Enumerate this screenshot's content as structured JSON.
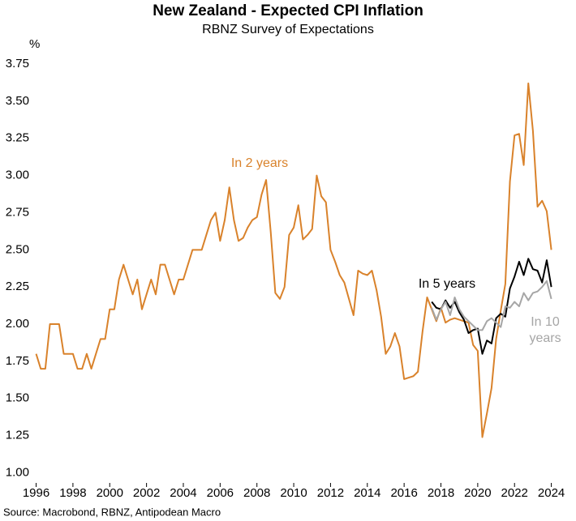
{
  "chart_data": {
    "type": "line",
    "title": "New Zealand - Expected CPI Inflation",
    "subtitle": "RBNZ Survey of Expectations",
    "y_unit": "%",
    "source": "Source: Macrobond, RBNZ, Antipodean Macro",
    "xlim": [
      1995.8,
      2024.9
    ],
    "ylim": [
      0.91,
      3.81
    ],
    "xticks": [
      1996,
      1998,
      2000,
      2002,
      2004,
      2006,
      2008,
      2010,
      2012,
      2014,
      2016,
      2018,
      2020,
      2022,
      2024
    ],
    "yticks": [
      {
        "value": 1,
        "label": "1.00"
      },
      1.25,
      {
        "value": 1.5,
        "label": "1.50"
      },
      1.75,
      {
        "value": 2,
        "label": "2.00"
      },
      2.25,
      {
        "value": 2.5,
        "label": "2.50"
      },
      2.75,
      {
        "value": 3,
        "label": "3.00"
      },
      3.25,
      {
        "value": 3.5,
        "label": "3.50"
      },
      3.75
    ],
    "grid": false,
    "annotations": [
      {
        "lines": [
          "In 2 years"
        ],
        "color": "#d9822b"
      },
      {
        "lines": [
          "In 5 years"
        ],
        "color": "#000000"
      },
      {
        "lines": [
          "In 10",
          "years"
        ],
        "color": "#a6a6a6"
      }
    ],
    "x": [
      1996,
      1996.25,
      1996.5,
      1996.75,
      1997,
      1997.25,
      1997.5,
      1997.75,
      1998,
      1998.25,
      1998.5,
      1998.75,
      1999,
      1999.25,
      1999.5,
      1999.75,
      2000,
      2000.25,
      2000.5,
      2000.75,
      2001,
      2001.25,
      2001.5,
      2001.75,
      2002,
      2002.25,
      2002.5,
      2002.75,
      2003,
      2003.25,
      2003.5,
      2003.75,
      2004,
      2004.25,
      2004.5,
      2004.75,
      2005,
      2005.25,
      2005.5,
      2005.75,
      2006,
      2006.25,
      2006.5,
      2006.75,
      2007,
      2007.25,
      2007.5,
      2007.75,
      2008,
      2008.25,
      2008.5,
      2008.75,
      2009,
      2009.25,
      2009.5,
      2009.75,
      2010,
      2010.25,
      2010.5,
      2010.75,
      2011,
      2011.25,
      2011.5,
      2011.75,
      2012,
      2012.25,
      2012.5,
      2012.75,
      2013,
      2013.25,
      2013.5,
      2013.75,
      2014,
      2014.25,
      2014.5,
      2014.75,
      2015,
      2015.25,
      2015.5,
      2015.75,
      2016,
      2016.25,
      2016.5,
      2016.75,
      2017,
      2017.25,
      2017.5,
      2017.75,
      2018,
      2018.25,
      2018.5,
      2018.75,
      2019,
      2019.25,
      2019.5,
      2019.75,
      2020,
      2020.25,
      2020.5,
      2020.75,
      2021,
      2021.25,
      2021.5,
      2021.75,
      2022,
      2022.25,
      2022.5,
      2022.75,
      2023,
      2023.25,
      2023.5,
      2023.75,
      2024
    ],
    "series": [
      {
        "color": "#d9822b",
        "values": [
          1.8,
          1.7,
          1.7,
          2.0,
          2.0,
          2.0,
          1.8,
          1.8,
          1.8,
          1.7,
          1.7,
          1.8,
          1.7,
          1.8,
          1.9,
          1.9,
          2.1,
          2.1,
          2.3,
          2.4,
          2.3,
          2.2,
          2.3,
          2.1,
          2.2,
          2.3,
          2.2,
          2.4,
          2.4,
          2.3,
          2.2,
          2.3,
          2.3,
          2.4,
          2.5,
          2.5,
          2.5,
          2.6,
          2.7,
          2.75,
          2.56,
          2.7,
          2.92,
          2.7,
          2.56,
          2.58,
          2.65,
          2.7,
          2.72,
          2.87,
          2.97,
          2.62,
          2.21,
          2.17,
          2.25,
          2.6,
          2.65,
          2.8,
          2.57,
          2.6,
          2.64,
          3.0,
          2.86,
          2.82,
          2.5,
          2.42,
          2.33,
          2.28,
          2.17,
          2.06,
          2.36,
          2.34,
          2.33,
          2.36,
          2.23,
          2.05,
          1.8,
          1.85,
          1.94,
          1.85,
          1.63,
          1.64,
          1.65,
          1.68,
          1.95,
          2.18,
          2.1,
          2.02,
          2.11,
          2.01,
          2.03,
          2.04,
          2.03,
          2.02,
          2.01,
          1.86,
          1.82,
          1.24,
          1.4,
          1.57,
          1.9,
          2.09,
          2.27,
          2.96,
          3.27,
          3.28,
          3.07,
          3.62,
          3.3,
          2.79,
          2.83,
          2.76,
          2.5
        ]
      },
      {
        "color": "#000000",
        "values": [
          null,
          null,
          null,
          null,
          null,
          null,
          null,
          null,
          null,
          null,
          null,
          null,
          null,
          null,
          null,
          null,
          null,
          null,
          null,
          null,
          null,
          null,
          null,
          null,
          null,
          null,
          null,
          null,
          null,
          null,
          null,
          null,
          null,
          null,
          null,
          null,
          null,
          null,
          null,
          null,
          null,
          null,
          null,
          null,
          null,
          null,
          null,
          null,
          null,
          null,
          null,
          null,
          null,
          null,
          null,
          null,
          null,
          null,
          null,
          null,
          null,
          null,
          null,
          null,
          null,
          null,
          null,
          null,
          null,
          null,
          null,
          null,
          null,
          null,
          null,
          null,
          null,
          null,
          null,
          null,
          null,
          null,
          null,
          null,
          null,
          null,
          2.15,
          2.11,
          2.1,
          2.16,
          2.11,
          2.15,
          2.08,
          2.03,
          1.94,
          1.96,
          1.97,
          1.8,
          1.89,
          1.87,
          2.04,
          2.07,
          2.05,
          2.24,
          2.32,
          2.42,
          2.33,
          2.44,
          2.37,
          2.36,
          2.28,
          2.43,
          2.25
        ]
      },
      {
        "color": "#a6a6a6",
        "values": [
          null,
          null,
          null,
          null,
          null,
          null,
          null,
          null,
          null,
          null,
          null,
          null,
          null,
          null,
          null,
          null,
          null,
          null,
          null,
          null,
          null,
          null,
          null,
          null,
          null,
          null,
          null,
          null,
          null,
          null,
          null,
          null,
          null,
          null,
          null,
          null,
          null,
          null,
          null,
          null,
          null,
          null,
          null,
          null,
          null,
          null,
          null,
          null,
          null,
          null,
          null,
          null,
          null,
          null,
          null,
          null,
          null,
          null,
          null,
          null,
          null,
          null,
          null,
          null,
          null,
          null,
          null,
          null,
          null,
          null,
          null,
          null,
          null,
          null,
          null,
          null,
          null,
          null,
          null,
          null,
          null,
          null,
          null,
          null,
          null,
          null,
          2.11,
          2.03,
          2.1,
          2.15,
          2.06,
          2.18,
          2.1,
          2.05,
          2.02,
          1.99,
          1.96,
          1.96,
          2.02,
          2.04,
          2.01,
          1.98,
          2.12,
          2.11,
          2.15,
          2.12,
          2.21,
          2.16,
          2.21,
          2.22,
          2.25,
          2.29,
          2.17
        ]
      }
    ]
  }
}
